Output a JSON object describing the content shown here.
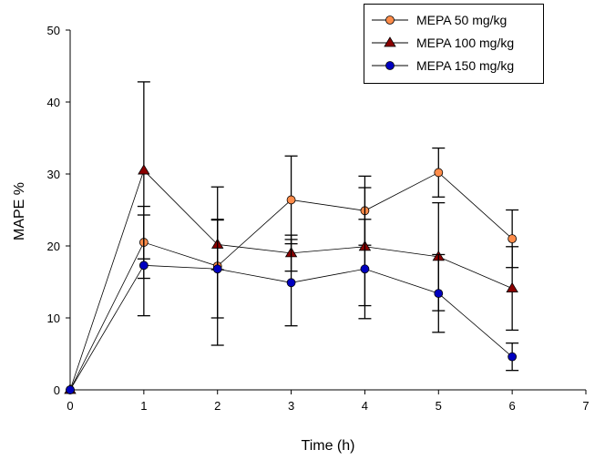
{
  "chart_data": {
    "type": "line",
    "title": "",
    "xlabel": "Time (h)",
    "ylabel": "MAPE %",
    "xlim": [
      0,
      7
    ],
    "ylim": [
      0,
      50
    ],
    "xticks": [
      "0",
      "1",
      "2",
      "3",
      "4",
      "5",
      "6",
      "7"
    ],
    "yticks": [
      "0",
      "10",
      "20",
      "30",
      "40",
      "50"
    ],
    "grid": false,
    "legend_position": "top-right",
    "x": [
      0,
      1,
      2,
      3,
      4,
      5,
      6
    ],
    "series": [
      {
        "name": "MEPA 50 mg/kg",
        "marker": "circle",
        "color": "#ff8c4a",
        "values": [
          0,
          20.5,
          17.2,
          26.4,
          24.9,
          30.2,
          21.0
        ],
        "errors": [
          0,
          5.0,
          11.0,
          6.1,
          4.8,
          3.4,
          4.0
        ]
      },
      {
        "name": "MEPA 100 mg/kg",
        "marker": "triangle",
        "color": "#8b0000",
        "values": [
          0,
          30.5,
          20.2,
          19.0,
          19.9,
          18.5,
          14.1
        ],
        "errors": [
          0,
          12.3,
          3.5,
          2.5,
          8.2,
          7.5,
          5.8
        ]
      },
      {
        "name": "MEPA 150 mg/kg",
        "marker": "circle",
        "color": "#0000c0",
        "values": [
          0,
          17.3,
          16.8,
          14.9,
          16.8,
          13.4,
          4.6
        ],
        "errors": [
          0,
          7.0,
          6.8,
          6.0,
          6.9,
          5.4,
          1.9
        ]
      }
    ]
  }
}
